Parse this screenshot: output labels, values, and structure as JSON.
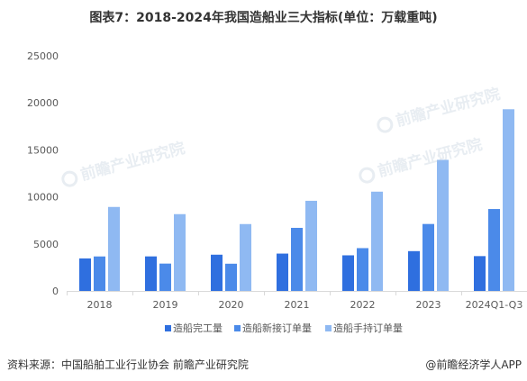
{
  "chart_data": {
    "type": "bar",
    "title": "图表7：2018-2024年我国造船业三大指标(单位：万载重吨)",
    "categories": [
      "2018",
      "2019",
      "2020",
      "2021",
      "2022",
      "2023",
      "2024Q1-Q3"
    ],
    "series": [
      {
        "name": "造船完工量",
        "color": "#2f6fdf",
        "values": [
          3458,
          3672,
          3853,
          3970,
          3786,
          4232,
          3702
        ]
      },
      {
        "name": "造船新接订单量",
        "color": "#4b8ae9",
        "values": [
          3667,
          2907,
          2893,
          6707,
          4552,
          7120,
          8711
        ]
      },
      {
        "name": "造船手持订单量",
        "color": "#8fb9f2",
        "values": [
          8931,
          8166,
          7111,
          9584,
          10557,
          13939,
          19321
        ]
      }
    ],
    "ylim": [
      0,
      25000
    ],
    "yticks": [
      0,
      5000,
      10000,
      15000,
      20000,
      25000
    ],
    "grid": false,
    "legend": "bottom"
  },
  "footer": {
    "source": "资料来源：中国船舶工业行业协会 前瞻产业研究院",
    "credit": "@前瞻经济学人APP"
  },
  "watermark": {
    "text": "前瞻产业研究院"
  }
}
